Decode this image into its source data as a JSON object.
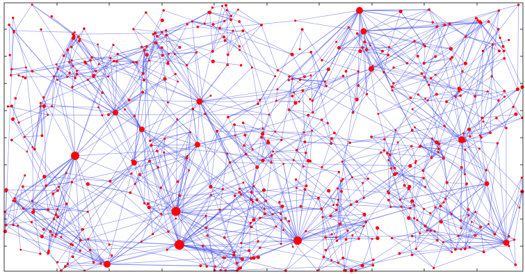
{
  "diagram": {
    "type": "network-graph",
    "frame": true,
    "node_color": "#ff0000",
    "edge_color": "#3c46e6",
    "frame_color": "#000000",
    "node_count": 650,
    "hubs": [
      {
        "id": "hub-a",
        "degree": 40
      },
      {
        "id": "hub-b",
        "degree": 34
      },
      {
        "id": "hub-c",
        "degree": 32
      },
      {
        "id": "hub-d",
        "degree": 30
      },
      {
        "id": "hub-e",
        "degree": 26
      },
      {
        "id": "hub-f",
        "degree": 24
      },
      {
        "id": "hub-g",
        "degree": 22
      },
      {
        "id": "hub-h",
        "degree": 20
      },
      {
        "id": "hub-i",
        "degree": 20
      },
      {
        "id": "hub-j",
        "degree": 18
      },
      {
        "id": "hub-k",
        "degree": 16
      },
      {
        "id": "hub-l",
        "degree": 16
      },
      {
        "id": "hub-m",
        "degree": 14
      },
      {
        "id": "hub-n",
        "degree": 14
      },
      {
        "id": "hub-o",
        "degree": 12
      },
      {
        "id": "hub-p",
        "degree": 12
      }
    ]
  }
}
